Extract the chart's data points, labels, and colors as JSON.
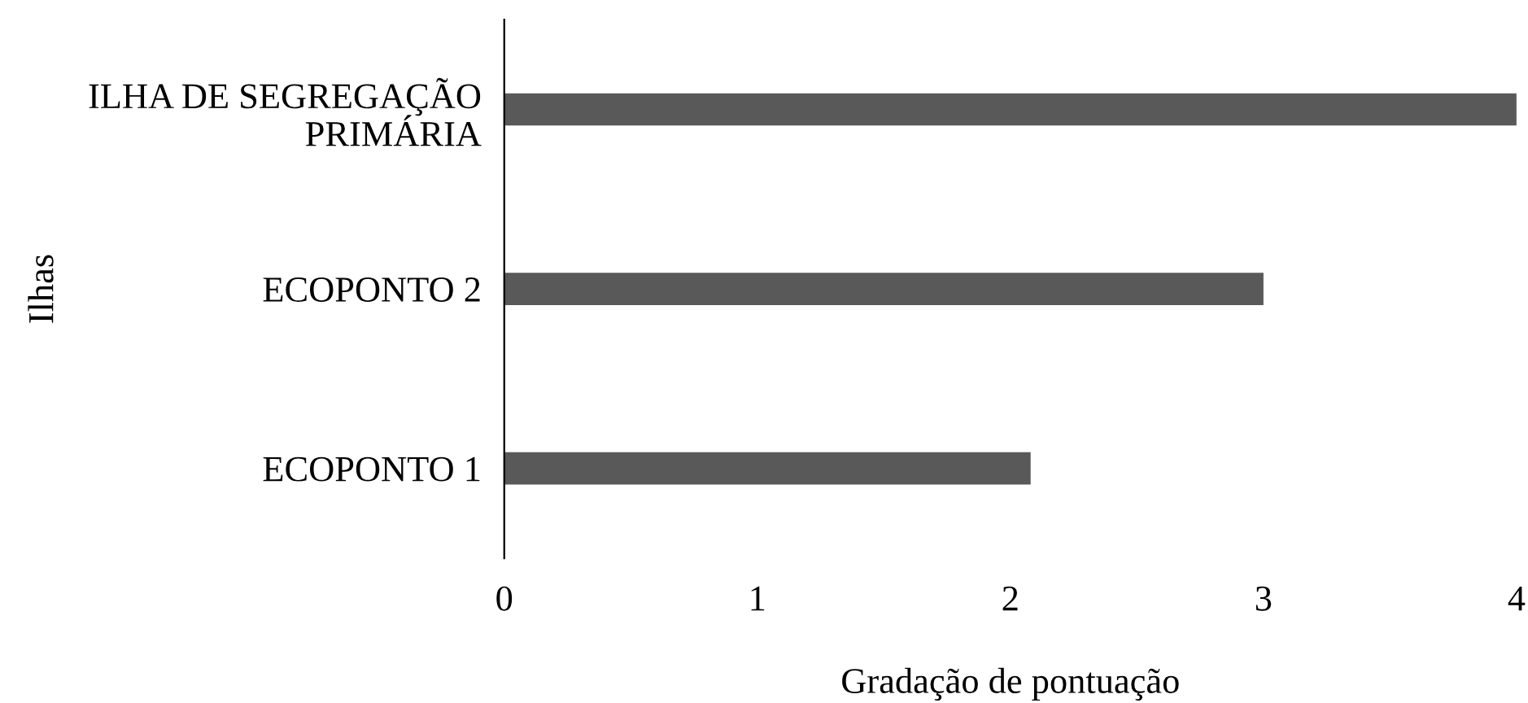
{
  "chart_data": {
    "type": "bar",
    "orientation": "horizontal",
    "xlabel": "Gradação de pontuação",
    "ylabel": "Ilhas",
    "categories": [
      "ILHA DE SEGREGAÇÃO\nPRIMÁRIA",
      "ECOPONTO 2",
      "ECOPONTO 1"
    ],
    "values": [
      4,
      3,
      2.08
    ],
    "color": "#595959",
    "xlim": [
      0,
      4
    ],
    "xticks": [
      0,
      1,
      2,
      3,
      4
    ],
    "grid": false,
    "legend": false
  }
}
